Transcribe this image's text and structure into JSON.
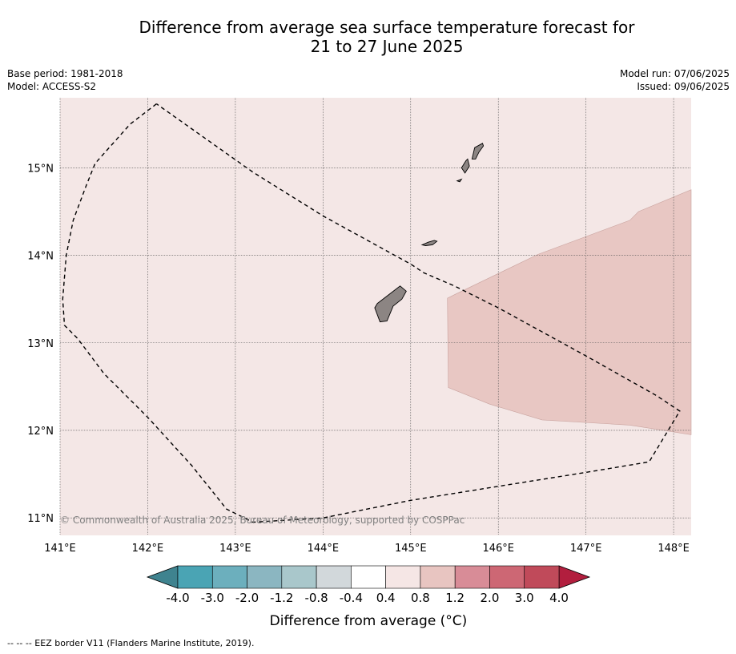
{
  "title": {
    "line1": "Difference from average sea surface temperature forecast for",
    "line2": "21 to 27 June 2025"
  },
  "meta_left": {
    "base_period": "Base period: 1981-2018",
    "model": "Model: ACCESS-S2"
  },
  "meta_right": {
    "model_run": "Model run: 07/06/2025",
    "issued": "Issued: 09/06/2025"
  },
  "map": {
    "lon_range": [
      141.0,
      148.2
    ],
    "lat_range": [
      10.8,
      15.8
    ],
    "lon_ticks": [
      141,
      142,
      143,
      144,
      145,
      146,
      147,
      148
    ],
    "lat_ticks": [
      11,
      12,
      13,
      14,
      15
    ],
    "lon_tick_labels": [
      "141°E",
      "142°E",
      "143°E",
      "144°E",
      "145°E",
      "146°E",
      "147°E",
      "148°E"
    ],
    "lat_tick_labels": [
      "11°N",
      "12°N",
      "13°N",
      "14°N",
      "15°N"
    ],
    "background_color": "#f4e7e6",
    "warm_region_color": "#e8c7c3",
    "land_color": "#8c8583",
    "copyright": "© Commonwealth of Australia 2025, Bureau of Meteorology, supported by COSPPac",
    "warm_region": [
      [
        145.43,
        12.49
      ],
      [
        145.42,
        13.51
      ],
      [
        145.5,
        13.55
      ],
      [
        146.45,
        14.01
      ],
      [
        147.5,
        14.4
      ],
      [
        147.6,
        14.5
      ],
      [
        148.2,
        14.75
      ],
      [
        148.2,
        11.95
      ],
      [
        147.5,
        12.06
      ],
      [
        146.5,
        12.12
      ],
      [
        145.9,
        12.3
      ]
    ],
    "eez_border": [
      [
        142.1,
        15.73
      ],
      [
        141.8,
        15.5
      ],
      [
        141.4,
        15.05
      ],
      [
        141.3,
        14.8
      ],
      [
        141.15,
        14.4
      ],
      [
        141.07,
        14.0
      ],
      [
        141.03,
        13.5
      ],
      [
        141.05,
        13.2
      ],
      [
        141.2,
        13.05
      ],
      [
        141.5,
        12.65
      ],
      [
        142.0,
        12.15
      ],
      [
        142.5,
        11.6
      ],
      [
        142.9,
        11.1
      ],
      [
        143.2,
        10.95
      ],
      [
        144.0,
        11.0
      ],
      [
        145.0,
        11.2
      ],
      [
        146.0,
        11.36
      ],
      [
        147.0,
        11.52
      ],
      [
        147.72,
        11.64
      ],
      [
        148.07,
        12.22
      ],
      [
        147.8,
        12.4
      ],
      [
        147.0,
        12.85
      ],
      [
        146.0,
        13.4
      ],
      [
        145.5,
        13.65
      ],
      [
        145.15,
        13.8
      ],
      [
        145.0,
        13.9
      ],
      [
        144.0,
        14.45
      ],
      [
        143.2,
        14.95
      ],
      [
        142.1,
        15.73
      ]
    ],
    "islands": [
      {
        "name": "guam",
        "outline": [
          [
            144.62,
            13.45
          ],
          [
            144.84,
            13.62
          ],
          [
            144.88,
            13.65
          ],
          [
            144.95,
            13.59
          ],
          [
            144.9,
            13.5
          ],
          [
            144.8,
            13.42
          ],
          [
            144.73,
            13.25
          ],
          [
            144.65,
            13.24
          ],
          [
            144.62,
            13.32
          ],
          [
            144.59,
            13.4
          ]
        ]
      },
      {
        "name": "rota",
        "outline": [
          [
            145.13,
            14.12
          ],
          [
            145.2,
            14.15
          ],
          [
            145.27,
            14.17
          ],
          [
            145.3,
            14.16
          ],
          [
            145.25,
            14.12
          ],
          [
            145.17,
            14.11
          ]
        ]
      },
      {
        "name": "tinian",
        "outline": [
          [
            145.58,
            15.0
          ],
          [
            145.63,
            15.08
          ],
          [
            145.65,
            15.1
          ],
          [
            145.67,
            15.02
          ],
          [
            145.62,
            14.94
          ]
        ]
      },
      {
        "name": "saipan",
        "outline": [
          [
            145.7,
            15.1
          ],
          [
            145.73,
            15.23
          ],
          [
            145.82,
            15.28
          ],
          [
            145.83,
            15.25
          ],
          [
            145.78,
            15.18
          ],
          [
            145.74,
            15.1
          ]
        ]
      },
      {
        "name": "aguijan",
        "outline": [
          [
            145.53,
            14.85
          ],
          [
            145.58,
            14.87
          ],
          [
            145.56,
            14.84
          ]
        ]
      }
    ]
  },
  "colorbar": {
    "label": "Difference from average (°C)",
    "tick_labels": [
      "-4.0",
      "-3.0",
      "-2.0",
      "-1.2",
      "-0.8",
      "-0.4",
      "0.4",
      "0.8",
      "1.2",
      "2.0",
      "3.0",
      "4.0"
    ],
    "low_extend_color": "#3f838f",
    "high_extend_color": "#b21e3e",
    "bin_colors": [
      "#4aa4b4",
      "#6cafbd",
      "#8bb6c1",
      "#a9c7cb",
      "#d2d8db",
      "#ffffff",
      "#f5e6e5",
      "#e8c5c1",
      "#d88c97",
      "#cd6774",
      "#c04a5a"
    ]
  },
  "footer": {
    "legend_text": "--  --  -- EEZ border V11 (Flanders Marine Institute, 2019)."
  }
}
